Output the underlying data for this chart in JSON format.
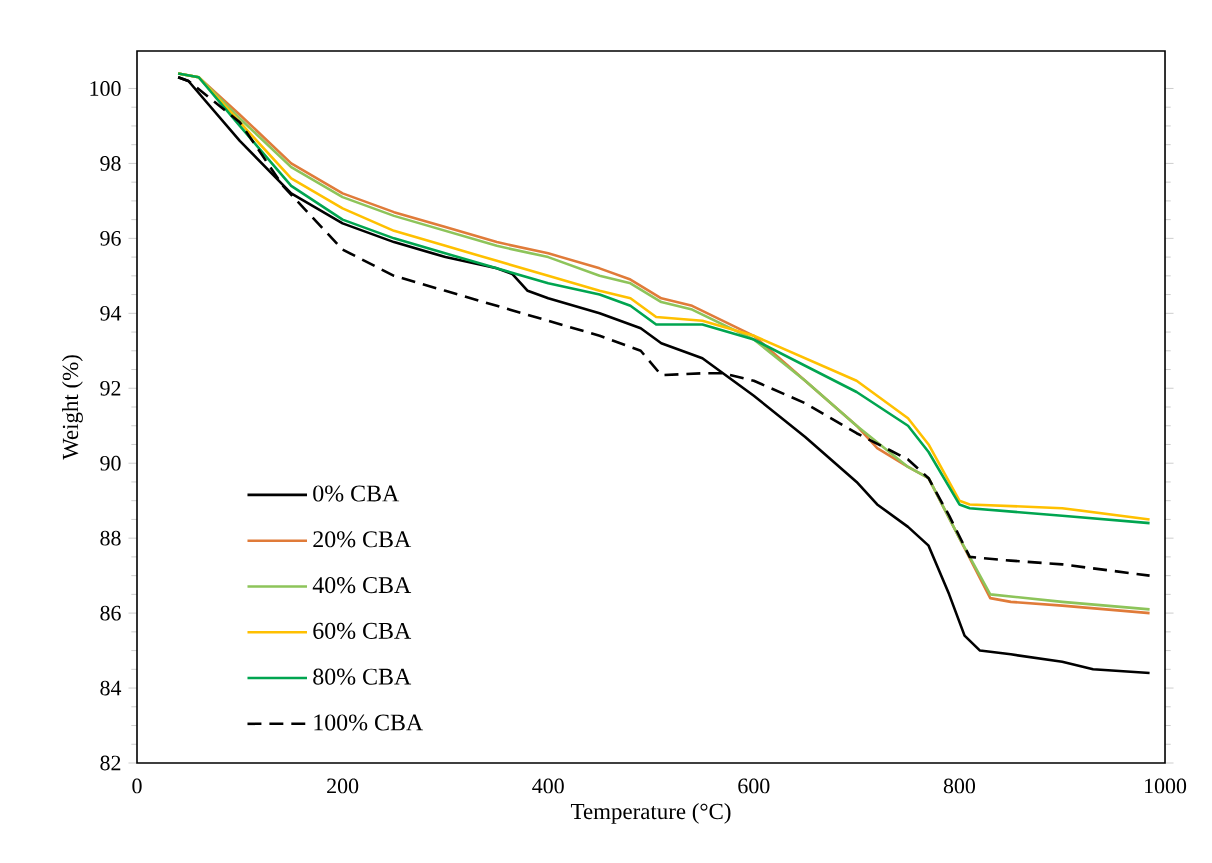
{
  "chart_data": {
    "type": "line",
    "xlabel": "Temperature (°C)",
    "ylabel": "Weight (%)",
    "xlim": [
      0,
      1000
    ],
    "ylim": [
      82,
      101
    ],
    "xticks": [
      0,
      200,
      400,
      600,
      800,
      1000
    ],
    "yticks": [
      82,
      84,
      86,
      88,
      90,
      92,
      94,
      96,
      98,
      100
    ],
    "grid": false,
    "legend": "bottom left",
    "marker": "none",
    "series": [
      {
        "name": "0% CBA",
        "color": "#000000",
        "line_style": "solid",
        "x": [
          40,
          50,
          100,
          150,
          200,
          250,
          300,
          350,
          365,
          380,
          400,
          450,
          490,
          510,
          550,
          600,
          650,
          700,
          720,
          750,
          770,
          790,
          805,
          820,
          850,
          900,
          930,
          985
        ],
        "values": [
          100.3,
          100.2,
          98.6,
          97.2,
          96.4,
          95.9,
          95.5,
          95.2,
          95.05,
          94.6,
          94.4,
          94.0,
          93.6,
          93.2,
          92.8,
          91.8,
          90.7,
          89.5,
          88.9,
          88.3,
          87.8,
          86.5,
          85.4,
          85.0,
          84.9,
          84.7,
          84.5,
          84.4
        ]
      },
      {
        "name": "20% CBA",
        "color": "#e07b39",
        "line_style": "solid",
        "x": [
          40,
          60,
          100,
          150,
          200,
          250,
          300,
          350,
          400,
          450,
          480,
          510,
          540,
          600,
          650,
          700,
          720,
          750,
          770,
          800,
          830,
          850,
          900,
          985
        ],
        "values": [
          100.4,
          100.3,
          99.3,
          98.0,
          97.2,
          96.7,
          96.3,
          95.9,
          95.6,
          95.2,
          94.9,
          94.4,
          94.2,
          93.4,
          92.2,
          91.0,
          90.4,
          89.9,
          89.6,
          88.0,
          86.4,
          86.3,
          86.2,
          86.0
        ]
      },
      {
        "name": "40% CBA",
        "color": "#8dc45a",
        "line_style": "solid",
        "x": [
          40,
          60,
          100,
          150,
          200,
          250,
          300,
          350,
          400,
          450,
          480,
          510,
          540,
          600,
          650,
          700,
          750,
          770,
          800,
          830,
          900,
          985
        ],
        "values": [
          100.4,
          100.3,
          99.2,
          97.9,
          97.1,
          96.6,
          96.2,
          95.8,
          95.5,
          95.0,
          94.8,
          94.3,
          94.1,
          93.3,
          92.2,
          91.0,
          89.9,
          89.6,
          88.0,
          86.5,
          86.3,
          86.1
        ]
      },
      {
        "name": "60% CBA",
        "color": "#ffc000",
        "line_style": "solid",
        "x": [
          40,
          60,
          100,
          150,
          200,
          250,
          300,
          350,
          400,
          450,
          480,
          505,
          550,
          600,
          650,
          700,
          750,
          770,
          800,
          810,
          900,
          985
        ],
        "values": [
          100.4,
          100.3,
          99.1,
          97.6,
          96.8,
          96.2,
          95.8,
          95.4,
          95.0,
          94.6,
          94.4,
          93.9,
          93.8,
          93.4,
          92.8,
          92.2,
          91.2,
          90.5,
          89.0,
          88.9,
          88.8,
          88.5
        ]
      },
      {
        "name": "80% CBA",
        "color": "#00a550",
        "line_style": "solid",
        "x": [
          40,
          60,
          100,
          150,
          200,
          250,
          300,
          350,
          400,
          450,
          480,
          505,
          550,
          600,
          650,
          700,
          750,
          770,
          800,
          810,
          900,
          985
        ],
        "values": [
          100.4,
          100.3,
          99.0,
          97.4,
          96.5,
          96.0,
          95.6,
          95.2,
          94.8,
          94.5,
          94.2,
          93.7,
          93.7,
          93.3,
          92.6,
          91.9,
          91.0,
          90.3,
          88.9,
          88.8,
          88.6,
          88.4
        ]
      },
      {
        "name": "100% CBA",
        "color": "#000000",
        "line_style": "dashed",
        "x": [
          40,
          50,
          100,
          142,
          200,
          250,
          300,
          350,
          400,
          450,
          490,
          510,
          550,
          570,
          600,
          650,
          700,
          750,
          770,
          790,
          810,
          850,
          900,
          985
        ],
        "values": [
          100.3,
          100.2,
          99.1,
          97.4,
          95.7,
          95.0,
          94.6,
          94.2,
          93.8,
          93.4,
          93.0,
          92.35,
          92.4,
          92.4,
          92.2,
          91.6,
          90.8,
          90.1,
          89.6,
          88.6,
          87.5,
          87.4,
          87.3,
          87.0
        ]
      }
    ]
  }
}
